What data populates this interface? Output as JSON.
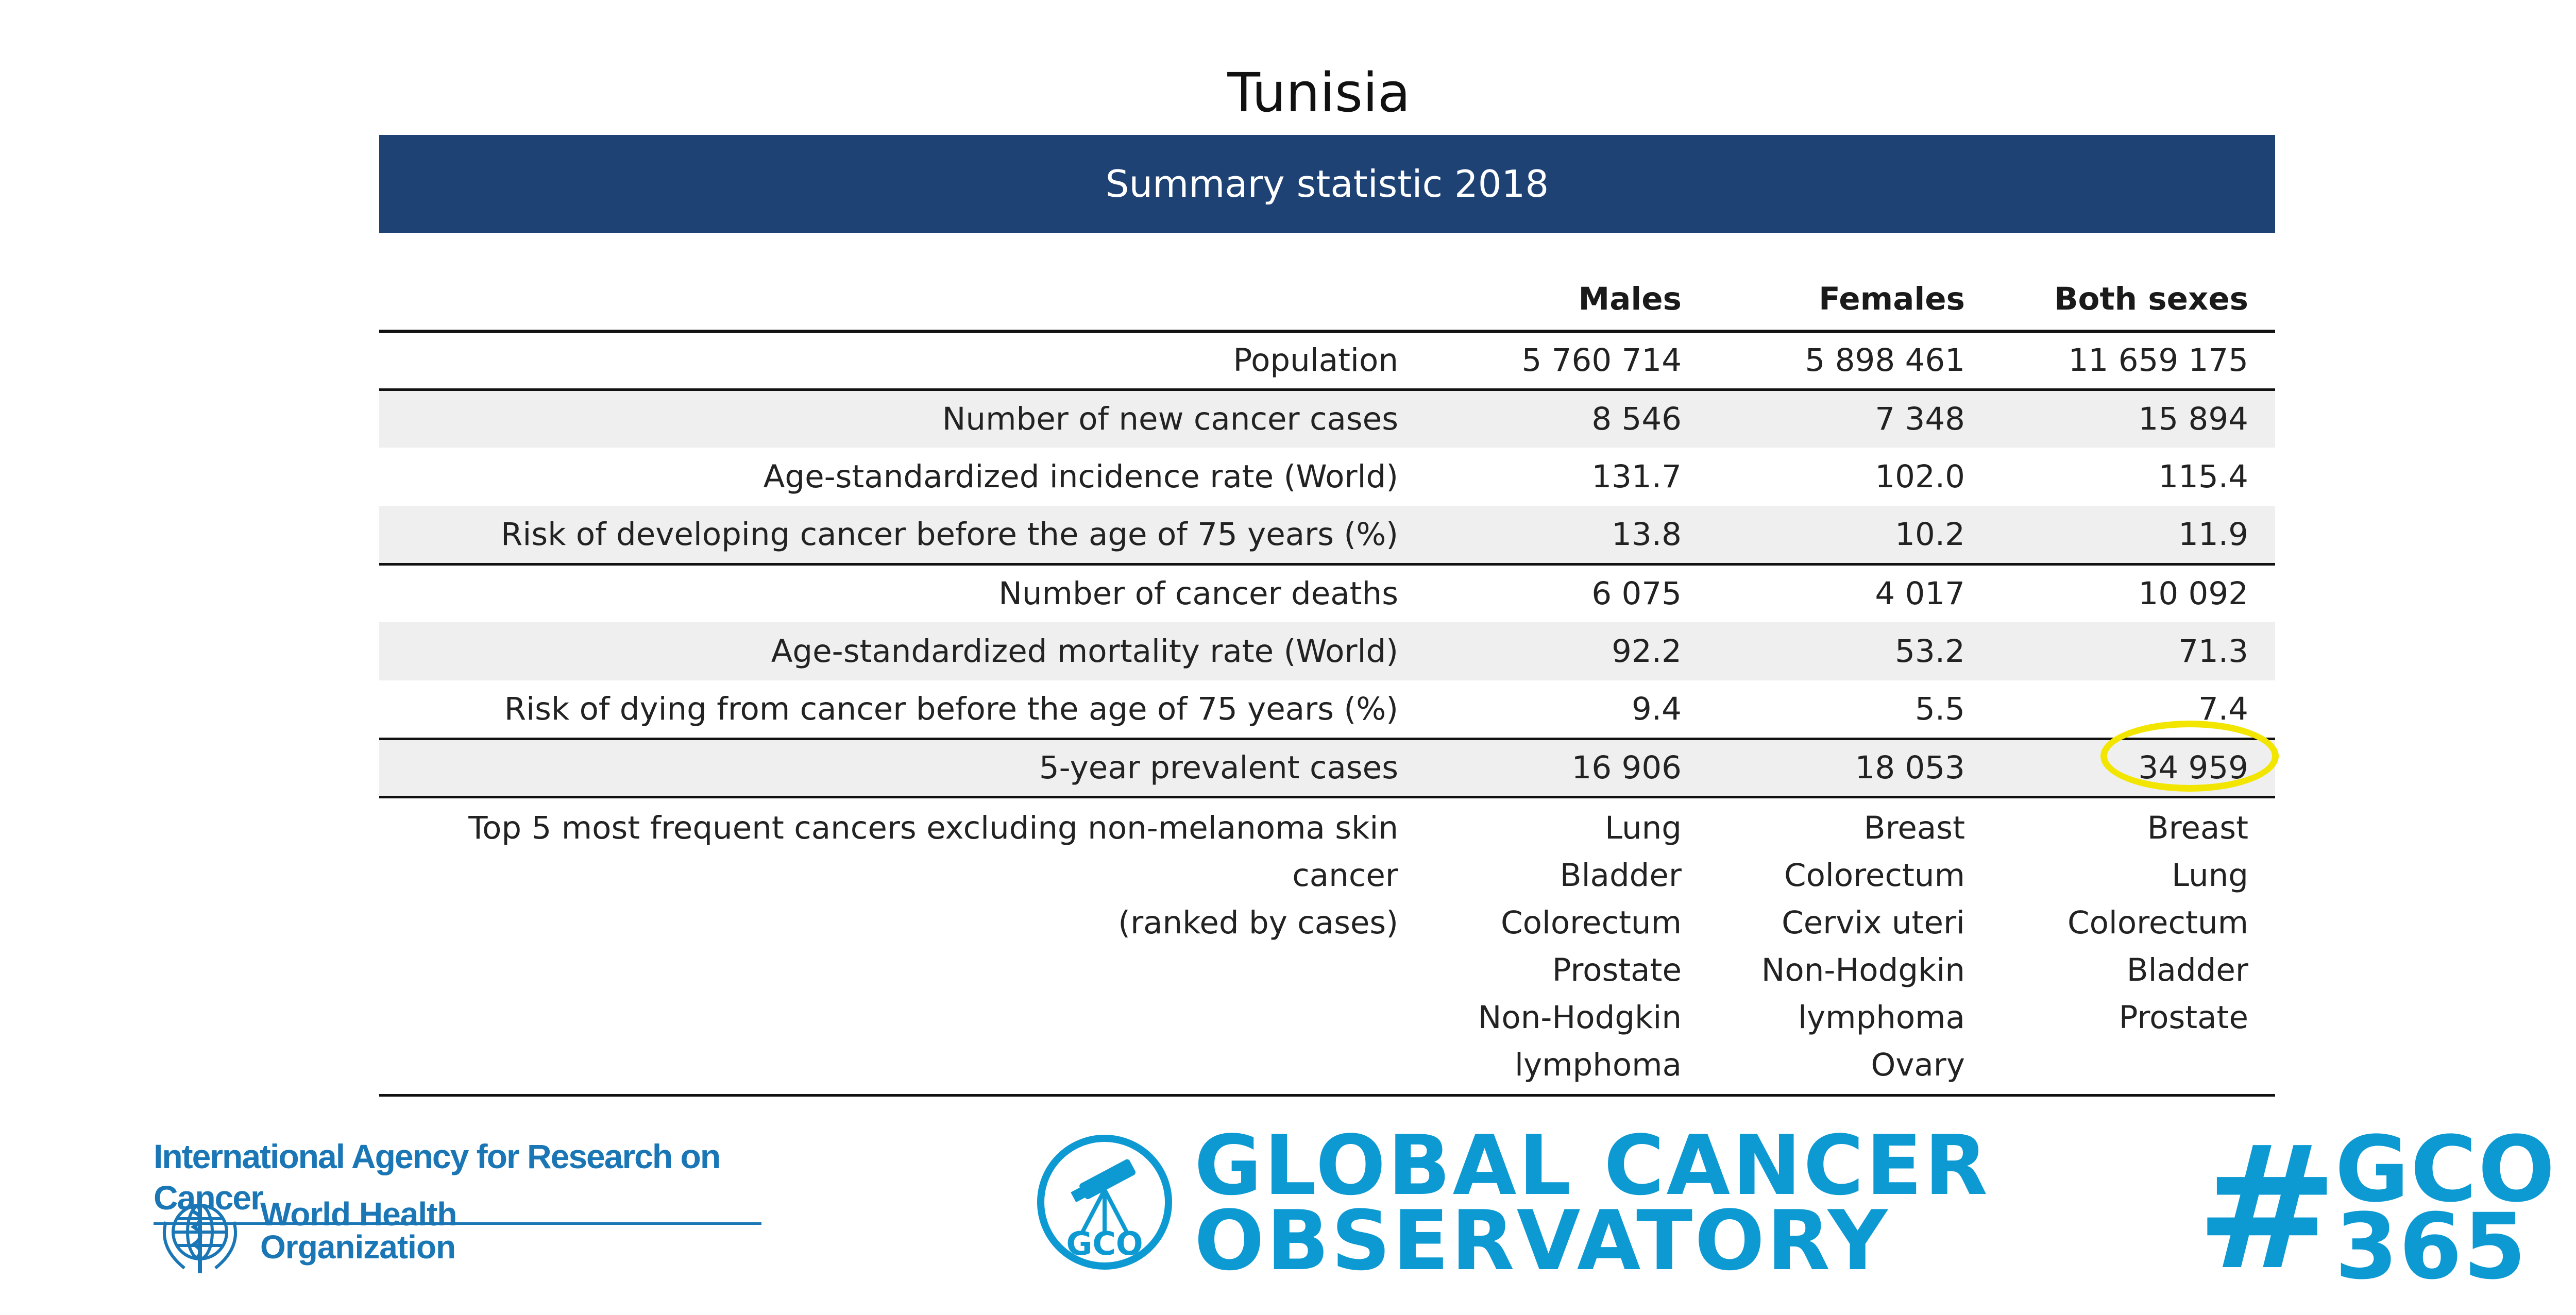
{
  "title": "Tunisia",
  "banner": "Summary statistic 2018",
  "table": {
    "headers": [
      "Males",
      "Females",
      "Both sexes"
    ],
    "rows": [
      {
        "label": "Population",
        "males": "5 760 714",
        "females": "5 898 461",
        "both": "11 659 175"
      },
      {
        "label": "Number of new cancer cases",
        "males": "8 546",
        "females": "7 348",
        "both": "15 894"
      },
      {
        "label": "Age-standardized incidence rate (World)",
        "males": "131.7",
        "females": "102.0",
        "both": "115.4"
      },
      {
        "label": "Risk of developing cancer before the age of 75 years (%)",
        "males": "13.8",
        "females": "10.2",
        "both": "11.9"
      },
      {
        "label": "Number of cancer deaths",
        "males": "6 075",
        "females": "4 017",
        "both": "10 092"
      },
      {
        "label": "Age-standardized mortality rate (World)",
        "males": "92.2",
        "females": "53.2",
        "both": "71.3"
      },
      {
        "label": "Risk of dying from cancer before the age of 75 years (%)",
        "males": "9.4",
        "females": "5.5",
        "both": "7.4"
      },
      {
        "label": "5-year prevalent cases",
        "males": "16 906",
        "females": "18 053",
        "both": "34 959"
      }
    ],
    "top5": {
      "label": "Top 5 most frequent cancers excluding non-melanoma skin cancer",
      "label_sub": "(ranked by cases)",
      "males": [
        "Lung",
        "Bladder",
        "Colorectum",
        "Prostate",
        "Non-Hodgkin",
        "lymphoma"
      ],
      "females": [
        "Breast",
        "Colorectum",
        "Cervix uteri",
        "Non-Hodgkin",
        "lymphoma",
        "Ovary"
      ],
      "both": [
        "Breast",
        "Lung",
        "Colorectum",
        "Bladder",
        "Prostate"
      ]
    }
  },
  "footer": {
    "iarc": "International Agency for Research on Cancer",
    "who_line1": "World Health",
    "who_line2": "Organization",
    "gco_badge": "GCO",
    "gco_line1": "GLOBAL CANCER",
    "gco_line2": "OBSERVATORY",
    "hashtag_symbol": "#",
    "hashtag_line1": "GCO",
    "hashtag_line2": "365"
  },
  "colors": {
    "banner": "#1f4275",
    "highlight": "#f2e600",
    "brand": "#0d9ad3",
    "who": "#1a76b5"
  }
}
